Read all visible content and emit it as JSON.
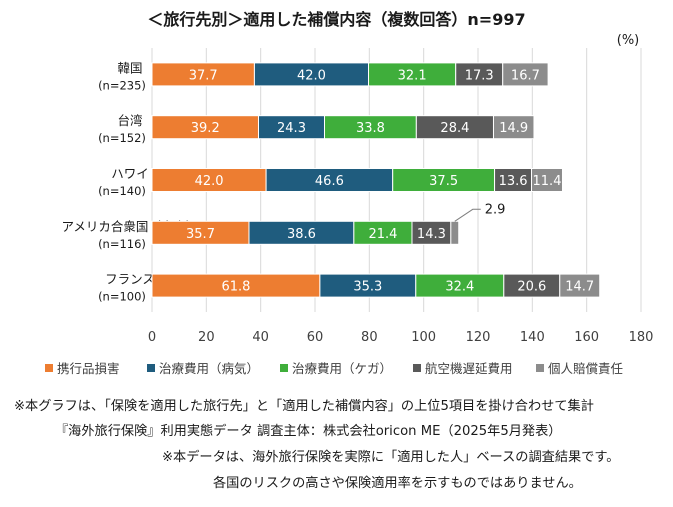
{
  "chart_data": {
    "type": "bar",
    "orientation": "horizontal",
    "stacked": true,
    "title": "＜旅行先別＞適用した補償内容（複数回答）n=997",
    "unit_label": "(%)",
    "categories": [
      {
        "name": "韓国",
        "n": "(n=235)"
      },
      {
        "name": "台湾",
        "n": "(n=152)"
      },
      {
        "name": "ハワイ",
        "n": "(n=140)"
      },
      {
        "name": "アメリカ合衆国（本土）",
        "n": "(n=116)"
      },
      {
        "name": "フランス",
        "n": "(n=100)"
      }
    ],
    "series": [
      {
        "name": "携行品損害",
        "color": "#ED7D31",
        "values": [
          37.7,
          39.2,
          42.0,
          35.7,
          61.8
        ]
      },
      {
        "name": "治療費用（病気）",
        "color": "#1F5C7E",
        "values": [
          42.0,
          24.3,
          46.6,
          38.6,
          35.3
        ]
      },
      {
        "name": "治療費用（ケガ）",
        "color": "#3FAE3B",
        "values": [
          32.1,
          33.8,
          37.5,
          21.4,
          32.4
        ]
      },
      {
        "name": "航空機遅延費用",
        "color": "#595959",
        "values": [
          17.3,
          28.4,
          13.6,
          14.3,
          20.6
        ]
      },
      {
        "name": "個人賠償責任",
        "color": "#8C8C8C",
        "values": [
          16.7,
          14.9,
          11.4,
          2.9,
          14.7
        ]
      }
    ],
    "xlim": [
      0,
      180
    ],
    "xticks": [
      "0",
      "20",
      "40",
      "60",
      "80",
      "100",
      "120",
      "140",
      "160",
      "180"
    ],
    "grid": true,
    "legend_position": "bottom",
    "callout": {
      "category_index": 3,
      "series_index": 4,
      "label": "2.9"
    }
  },
  "notes": {
    "line1": "※本グラフは、「保険を適用した旅行先」と「適用した補償内容」の上位5項目を掛け合わせて集計",
    "line2": "『海外旅行保険』利用実態データ 調査主体：株式会社oricon ME（2025年5月発表）",
    "line3": "※本データは、海外旅行保険を実際に「適用した人」ベースの調査結果です。",
    "line4": "各国のリスクの高さや保険適用率を示すものではありません。"
  }
}
